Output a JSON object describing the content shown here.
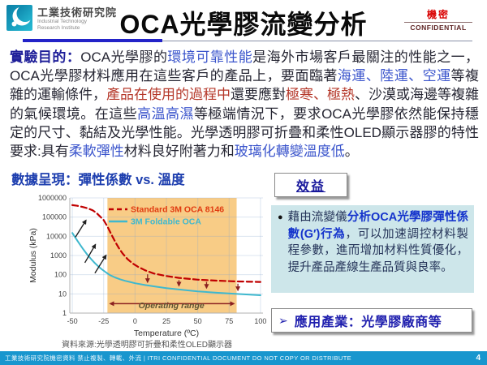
{
  "header": {
    "org_zh": "工業技術研究院",
    "org_en_line1": "Industrial Technology",
    "org_en_line2": "Research Institute",
    "title": "OCA光學膠流變分析",
    "stamp_zh": "機密",
    "stamp_en": "CONFIDENTIAL"
  },
  "purpose": {
    "segments": [
      {
        "text": "實驗目的：",
        "style": "label"
      },
      {
        "text": "OCA光學膠的",
        "style": "base"
      },
      {
        "text": "環境可靠性能",
        "style": "blue"
      },
      {
        "text": "是海外市場客戶最關注的性能之一，OCA光學膠材料應用在這些客戶的產品上，要面臨著",
        "style": "base"
      },
      {
        "text": "海運、陸運、空運",
        "style": "blue"
      },
      {
        "text": "等複雜的運輸條件，",
        "style": "base"
      },
      {
        "text": "產品在使用的過程中",
        "style": "red"
      },
      {
        "text": "還要應對",
        "style": "base"
      },
      {
        "text": "極寒、極熱",
        "style": "red"
      },
      {
        "text": "、沙漠或海邊等複雜的氣候環境。在這些",
        "style": "base"
      },
      {
        "text": "高溫高濕",
        "style": "blue"
      },
      {
        "text": "等極端情況下，要求OCA光學膠依然能保持穩定的尺寸、黏結及光學性能。光學透明膠可折疊和柔性OLED顯示器膠的特性要求:具有",
        "style": "base"
      },
      {
        "text": "柔軟彈性",
        "style": "blue"
      },
      {
        "text": "材料良好附著力和",
        "style": "base"
      },
      {
        "text": "玻璃化轉變溫度低",
        "style": "blue"
      },
      {
        "text": "。",
        "style": "base"
      }
    ]
  },
  "data_section": {
    "heading": "數據呈現：彈性係數 vs. 溫度",
    "source_note": "資料來源:光學透明膠可折疊和柔性OLED顯示器"
  },
  "chart_data": {
    "type": "line",
    "title": "彈性係數 vs. 溫度",
    "xlabel": "Temperature (ºC)",
    "ylabel": "Modulus (kPa)",
    "x_ticks": [
      -50,
      -25,
      0,
      25,
      50,
      75,
      100
    ],
    "y_ticks": [
      1,
      10,
      100,
      1000,
      10000,
      100000,
      1000000
    ],
    "y_scale": "log",
    "xlim": [
      -52,
      102
    ],
    "ylim": [
      1,
      1000000
    ],
    "grid": true,
    "legend_position": "top-inside",
    "operating_range": {
      "label": "Operating range",
      "from": -22,
      "to": 81,
      "color": "#F8CC86",
      "label_x": 29,
      "label_y": 1.75
    },
    "series": [
      {
        "name": "Standard 3M OCA 8146",
        "color": "#C00000",
        "legend_color": "#E03A10",
        "dash": true,
        "width": 2.2,
        "x": [
          -50,
          -46,
          -42,
          -38,
          -34,
          -31,
          -28,
          -25,
          -22,
          -19,
          -16,
          -13,
          -10,
          -6,
          -2,
          2,
          8,
          15,
          25,
          35,
          50,
          65,
          80,
          100
        ],
        "y": [
          420000,
          390000,
          340000,
          290000,
          230000,
          170000,
          110000,
          70000,
          32000,
          13000,
          5500,
          2500,
          1300,
          650,
          390,
          265,
          170,
          115,
          85,
          68,
          55,
          49,
          45,
          42
        ]
      },
      {
        "name": "3M Foldable OCA",
        "color": "#3FB8CE",
        "legend_color": "#3FB8CE",
        "dash": false,
        "width": 2,
        "x": [
          -50,
          -47,
          -44,
          -41,
          -38,
          -35,
          -32,
          -29,
          -26,
          -23,
          -20,
          -16,
          -12,
          -8,
          -4,
          0,
          8,
          16,
          25,
          35,
          50,
          65,
          80,
          100
        ],
        "y": [
          15000,
          7500,
          3800,
          2000,
          1100,
          650,
          400,
          260,
          180,
          130,
          95,
          72,
          58,
          48,
          42,
          36,
          29,
          24,
          20,
          17,
          13.5,
          11.5,
          10,
          8.5
        ]
      }
    ],
    "annotations": {
      "shift_arrows": [
        {
          "x1": -47.5,
          "y1": 9000,
          "x2": -39,
          "y2": 70000
        },
        {
          "x1": -40,
          "y1": 420,
          "x2": -31.5,
          "y2": 3800
        },
        {
          "x1": -32,
          "y1": 120,
          "x2": -23,
          "y2": 1050
        }
      ],
      "gap_arrows": [
        {
          "x": 10,
          "y1": 105,
          "y2": 40
        },
        {
          "x": 35,
          "y1": 52,
          "y2": 26
        },
        {
          "x": 57,
          "y1": 42,
          "y2": 20
        },
        {
          "x": 82,
          "y1": 34,
          "y2": 15
        }
      ],
      "range_arrow": {
        "from": -20,
        "to": 79,
        "y": 3.1
      }
    }
  },
  "benefit": {
    "box_label": "效益",
    "bullet": "●",
    "segments": [
      {
        "text": "藉由流變儀",
        "style": "base"
      },
      {
        "text": "分析OCA光學膠彈性係數(G′)行為",
        "style": "blue-bold"
      },
      {
        "text": "，可以加速調控材料製程參數，進而增加材料性質優化，提升產品產線生產品質與良率。",
        "style": "base"
      }
    ]
  },
  "application": {
    "arrow": "➢",
    "text": "應用產業：光學膠廠商等"
  },
  "footer": {
    "left": "工業技術研究院機密資料 禁止複製、轉載、外流  | ITRI  CONFIDENTIAL  DOCUMENT  DO  NOT  COPY  OR  DISTRIBUTE",
    "page": "4"
  },
  "colors": {
    "footer_bar": "#1896CE",
    "divider_blue": "#2323C8",
    "band": "#F8CC86",
    "panel": "#CDE6EA",
    "stamp_red": "#D90000",
    "heading_blue": "#1E3FAF"
  }
}
